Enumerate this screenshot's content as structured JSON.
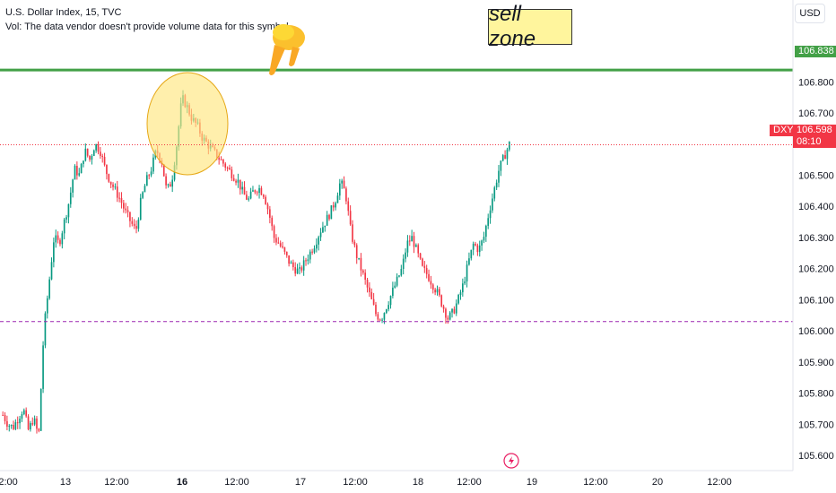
{
  "header": {
    "title": "U.S. Dollar Index, 15, TVC",
    "volume_note": "Vol: The data vendor doesn't provide volume data for this symbol."
  },
  "currency_label": "USD",
  "annotation": {
    "text": "sell zone",
    "icon": "pointing-down-hand-icon"
  },
  "price_tags": {
    "green_line": "106.838",
    "symbol": "DXY",
    "current_price": "106.598",
    "countdown": "08:10"
  },
  "colors": {
    "up": "#089981",
    "down": "#f23645",
    "resistance": "#43a047",
    "support": "#9c27b0",
    "highlight": "#ffe680"
  },
  "chart_data": {
    "type": "candlestick",
    "title": "U.S. Dollar Index, 15, TVC",
    "ylim": [
      105.58,
      106.965
    ],
    "y_ticks": [
      "106.900",
      "106.800",
      "106.700",
      "106.600",
      "106.500",
      "106.400",
      "106.300",
      "106.200",
      "106.100",
      "106.000",
      "105.900",
      "105.800",
      "105.700",
      "105.600"
    ],
    "x_ticks": [
      {
        "label": "12:00",
        "bold": false
      },
      {
        "label": "13",
        "bold": false
      },
      {
        "label": "12:00",
        "bold": false
      },
      {
        "label": "16",
        "bold": true
      },
      {
        "label": "12:00",
        "bold": false
      },
      {
        "label": "17",
        "bold": false
      },
      {
        "label": "12:00",
        "bold": false
      },
      {
        "label": "18",
        "bold": false
      },
      {
        "label": "12:00",
        "bold": false
      },
      {
        "label": "19",
        "bold": false
      },
      {
        "label": "12:00",
        "bold": false
      },
      {
        "label": "20",
        "bold": false
      },
      {
        "label": "12:00",
        "bold": false
      }
    ],
    "resistance_level": 106.838,
    "support_level": 106.03,
    "last_price": 106.598,
    "price_path": [
      [
        105.73,
        105.7
      ],
      [
        105.69,
        105.72
      ],
      [
        105.75,
        105.68
      ],
      [
        105.72,
        105.66
      ],
      [
        106.0,
        106.15
      ],
      [
        106.3,
        106.28
      ],
      [
        106.35,
        106.42
      ],
      [
        106.52,
        106.5
      ],
      [
        106.58,
        106.55
      ],
      [
        106.6,
        106.58
      ],
      [
        106.52,
        106.48
      ],
      [
        106.45,
        106.42
      ],
      [
        106.38,
        106.35
      ],
      [
        106.32,
        106.42
      ],
      [
        106.48,
        106.52
      ],
      [
        106.58,
        106.55
      ],
      [
        106.45,
        106.48
      ],
      [
        106.6,
        106.75
      ],
      [
        106.72,
        106.68
      ],
      [
        106.66,
        106.62
      ],
      [
        106.6,
        106.58
      ],
      [
        106.56,
        106.54
      ],
      [
        106.52,
        106.5
      ],
      [
        106.48,
        106.44
      ],
      [
        106.42,
        106.45
      ],
      [
        106.46,
        106.44
      ],
      [
        106.38,
        106.3
      ],
      [
        106.28,
        106.25
      ],
      [
        106.22,
        106.2
      ],
      [
        106.19,
        106.22
      ],
      [
        106.25,
        106.28
      ],
      [
        106.32,
        106.35
      ],
      [
        106.38,
        106.42
      ],
      [
        106.48,
        106.44
      ],
      [
        106.32,
        106.25
      ],
      [
        106.2,
        106.15
      ],
      [
        106.1,
        106.05
      ],
      [
        106.04,
        106.08
      ],
      [
        106.12,
        106.16
      ],
      [
        106.2,
        106.28
      ],
      [
        106.3,
        106.25
      ],
      [
        106.2,
        106.18
      ],
      [
        106.15,
        106.12
      ],
      [
        106.08,
        106.04
      ],
      [
        106.06,
        106.1
      ],
      [
        106.15,
        106.22
      ],
      [
        106.28,
        106.26
      ],
      [
        106.3,
        106.38
      ],
      [
        106.45,
        106.52
      ],
      [
        106.56,
        106.6
      ]
    ]
  }
}
